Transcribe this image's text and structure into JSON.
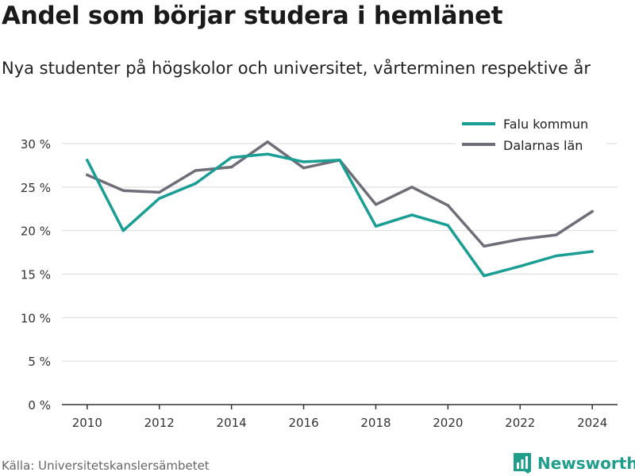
{
  "header": {
    "title": "Andel som börjar studera i hemlänet",
    "subtitle": "Nya studenter på högskolor och universitet, vårterminen respektive år"
  },
  "footer": {
    "source": "Källa: Universitetskanslersämbetet",
    "brand": "Newsworthy",
    "brand_icon": "bar-chart-logo-icon"
  },
  "colors": {
    "falu": "#1a9e94",
    "dalarnas": "#6e6e78",
    "grid": "#d9d9d9",
    "axis": "#333333",
    "brand": "#1f9e8c"
  },
  "chart_data": {
    "type": "line",
    "x": [
      2010,
      2011,
      2012,
      2013,
      2014,
      2015,
      2016,
      2017,
      2018,
      2019,
      2020,
      2021,
      2022,
      2023,
      2024
    ],
    "series": [
      {
        "name": "Falu kommun",
        "color": "#1a9e94",
        "values": [
          28.1,
          20.0,
          23.7,
          25.4,
          28.4,
          28.8,
          27.9,
          28.1,
          20.5,
          21.8,
          20.6,
          14.8,
          15.9,
          17.1,
          17.6
        ]
      },
      {
        "name": "Dalarnas län",
        "color": "#6e6e78",
        "values": [
          26.4,
          24.6,
          24.4,
          26.9,
          27.3,
          30.2,
          27.2,
          28.1,
          23.0,
          25.0,
          22.9,
          18.2,
          19.0,
          19.5,
          22.2
        ]
      }
    ],
    "yticks": [
      "0 %",
      "5 %",
      "10 %",
      "15 %",
      "20 %",
      "25 %",
      "30 %"
    ],
    "ytick_values": [
      0,
      5,
      10,
      15,
      20,
      25,
      30
    ],
    "xticks": [
      "2010",
      "2012",
      "2014",
      "2016",
      "2018",
      "2020",
      "2022",
      "2024"
    ],
    "xtick_values": [
      2010,
      2012,
      2014,
      2016,
      2018,
      2020,
      2022,
      2024
    ],
    "ylim": [
      0,
      30
    ],
    "xlim": [
      2009.3,
      2024.7
    ],
    "grid": "horizontal",
    "legend_position": "top-right",
    "xlabel": "",
    "ylabel": ""
  }
}
